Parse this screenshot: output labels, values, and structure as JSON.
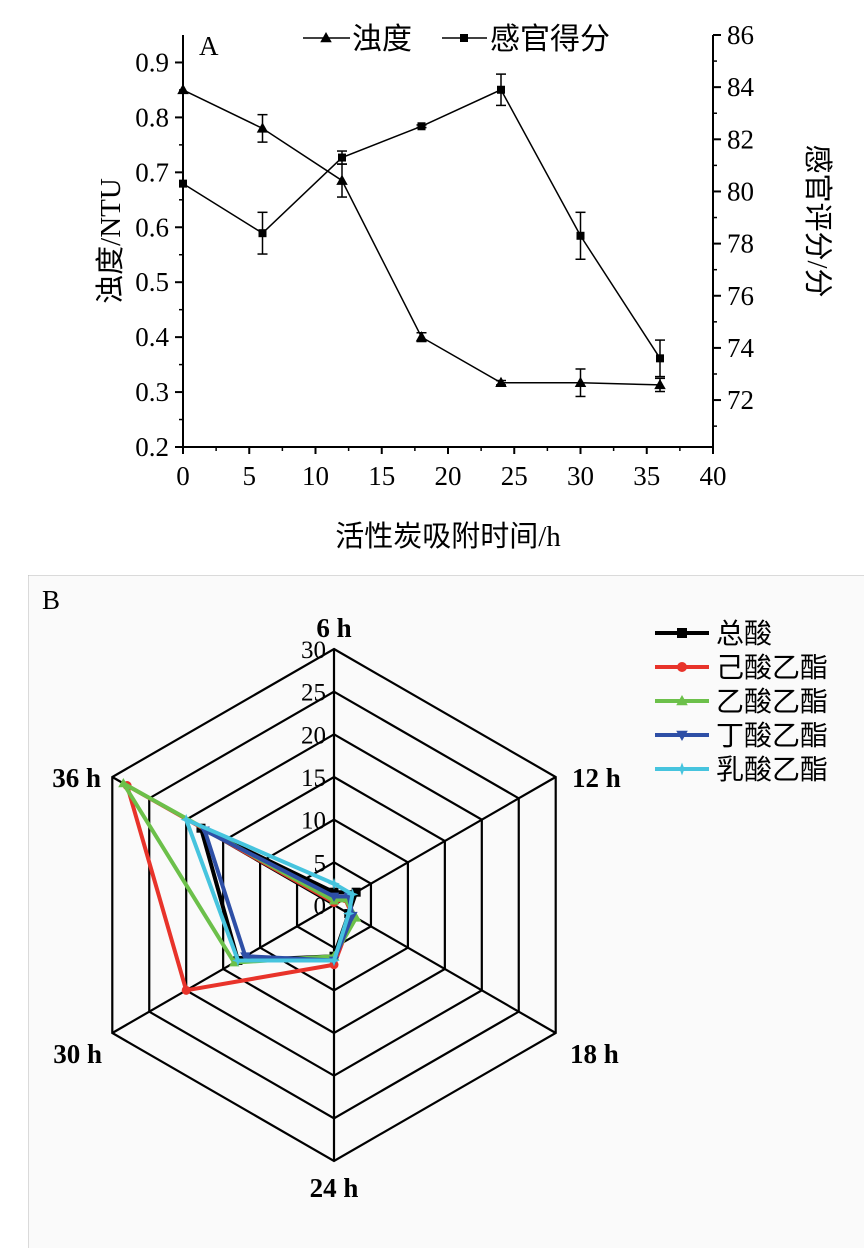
{
  "chart_data": [
    {
      "type": "line",
      "panel_label": "A",
      "xlabel": "活性炭吸附时间/h",
      "ylabel_left": "浊度/NTU",
      "ylabel_right": "感官评分/分",
      "xlim": [
        0,
        40
      ],
      "ylim_left": [
        0.2,
        0.95
      ],
      "ylim_right": [
        70.2,
        86
      ],
      "x_ticks": [
        0,
        5,
        10,
        15,
        20,
        25,
        30,
        35,
        40
      ],
      "x_tick_labels": [
        "0",
        "5",
        "10",
        "15",
        "20",
        "25",
        "30",
        "35",
        "40"
      ],
      "y_left_ticks": [
        0.2,
        0.3,
        0.4,
        0.5,
        0.6,
        0.7,
        0.8,
        0.9
      ],
      "y_left_tick_labels": [
        "0.2",
        "0.3",
        "0.4",
        "0.5",
        "0.6",
        "0.7",
        "0.8",
        "0.9"
      ],
      "y_right_ticks": [
        72,
        74,
        76,
        78,
        80,
        82,
        84,
        86
      ],
      "y_right_tick_labels": [
        "72",
        "74",
        "76",
        "78",
        "80",
        "82",
        "84",
        "86"
      ],
      "legend_position": "top-center",
      "series": [
        {
          "name": "浊度",
          "axis": "left",
          "marker": "triangle",
          "x": [
            0,
            6,
            12,
            18,
            24,
            30,
            36
          ],
          "y": [
            0.85,
            0.78,
            0.685,
            0.4,
            0.317,
            0.317,
            0.313
          ],
          "error": [
            0,
            0.025,
            0.03,
            0.008,
            0.004,
            0.025,
            0.012
          ]
        },
        {
          "name": "感官得分",
          "axis": "right",
          "marker": "square",
          "x": [
            0,
            6,
            12,
            18,
            24
          ],
          "y": [
            80.3,
            78.4,
            81.3,
            82.5,
            83.9
          ],
          "x_cont": [
            30,
            36
          ],
          "y_cont": [
            78.3,
            73.6
          ],
          "error": [
            0,
            0.8,
            0.25,
            0.05,
            0.6
          ],
          "error_cont": [
            0.9,
            0.7
          ]
        }
      ]
    },
    {
      "type": "radar",
      "panel_label": "B",
      "axes": [
        "6 h",
        "12 h",
        "18 h",
        "24 h",
        "30 h",
        "36 h"
      ],
      "rlim": [
        0,
        30
      ],
      "r_ticks": [
        0,
        5,
        10,
        15,
        20,
        25,
        30
      ],
      "r_tick_labels": [
        "0",
        "5",
        "10",
        "15",
        "20",
        "25",
        "30"
      ],
      "legend_position": "top-right",
      "series": [
        {
          "name": "总酸",
          "color": "#000000",
          "marker": "square",
          "values": [
            1.5,
            3.0,
            2.0,
            6.0,
            13.0,
            18.0
          ]
        },
        {
          "name": "己酸乙酯",
          "color": "#e8332a",
          "marker": "circle",
          "values": [
            0.3,
            1.5,
            2.5,
            7.0,
            20.0,
            28.0
          ]
        },
        {
          "name": "乙酸乙酯",
          "color": "#6cc04a",
          "marker": "triangle-up",
          "values": [
            0.5,
            1.5,
            3.0,
            6.0,
            13.5,
            28.5
          ]
        },
        {
          "name": "丁酸乙酯",
          "color": "#2e4fa6",
          "marker": "triangle-down",
          "values": [
            1.0,
            2.0,
            2.5,
            6.5,
            12.0,
            17.5
          ]
        },
        {
          "name": "乳酸乙酯",
          "color": "#46c4de",
          "marker": "star",
          "values": [
            2.5,
            2.5,
            2.0,
            6.5,
            13.0,
            20.0
          ]
        }
      ]
    }
  ]
}
